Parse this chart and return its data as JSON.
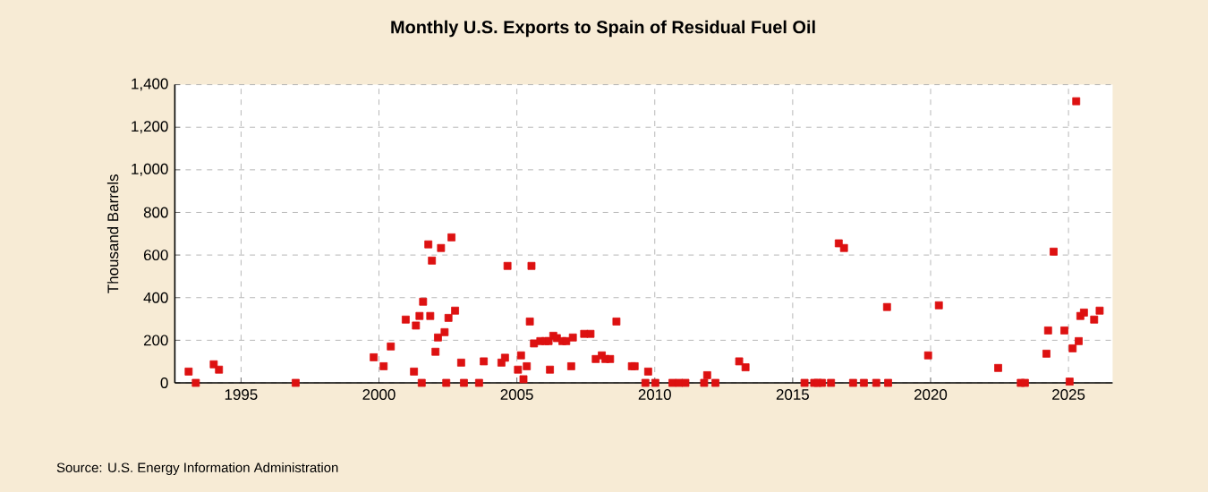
{
  "chart_data": {
    "type": "scatter",
    "title": "Monthly U.S. Exports to Spain of Residual Fuel Oil",
    "ylabel": "Thousand Barrels",
    "annotations": [
      "Source: U.S. Energy Information Administration"
    ],
    "x": [
      1993.1,
      1993.36,
      1994.01,
      1994.2,
      1996.98,
      1999.81,
      2000.17,
      2000.43,
      2000.97,
      2001.27,
      2001.34,
      2001.47,
      2001.55,
      2001.6,
      2001.79,
      2001.86,
      2001.92,
      2002.05,
      2002.14,
      2002.25,
      2002.38,
      2002.44,
      2002.52,
      2002.63,
      2002.76,
      2002.98,
      2003.08,
      2003.63,
      2003.8,
      2004.44,
      2004.57,
      2004.66,
      2005.04,
      2005.15,
      2005.24,
      2005.36,
      2005.47,
      2005.53,
      2005.62,
      2005.85,
      2006.03,
      2006.15,
      2006.2,
      2006.32,
      2006.45,
      2006.65,
      2006.79,
      2006.97,
      2007.03,
      2007.44,
      2007.67,
      2007.86,
      2008.08,
      2008.21,
      2008.38,
      2008.61,
      2009.17,
      2009.27,
      2009.66,
      2009.76,
      2010.02,
      2010.64,
      2010.88,
      2011.11,
      2011.79,
      2011.9,
      2012.2,
      2013.06,
      2013.29,
      2015.43,
      2015.78,
      2015.91,
      2016.06,
      2016.39,
      2016.67,
      2016.86,
      2017.19,
      2017.58,
      2018.03,
      2018.42,
      2018.46,
      2019.91,
      2020.3,
      2022.45,
      2023.27,
      2023.42,
      2024.2,
      2024.26,
      2024.46,
      2024.85,
      2025.04,
      2025.15,
      2025.28,
      2025.37,
      2025.43,
      2025.56,
      2025.93,
      2026.13
    ],
    "series": [
      {
        "color": "#dd1111",
        "values": [
          53,
          0,
          87,
          62,
          0,
          120,
          78,
          171,
          297,
          53,
          269,
          314,
          0,
          381,
          650,
          314,
          574,
          146,
          213,
          633,
          238,
          0,
          305,
          683,
          339,
          95,
          0,
          0,
          101,
          95,
          118,
          549,
          62,
          129,
          17,
          78,
          288,
          549,
          185,
          196,
          196,
          196,
          62,
          221,
          210,
          196,
          196,
          78,
          213,
          230,
          230,
          112,
          129,
          112,
          112,
          288,
          78,
          78,
          0,
          53,
          0,
          0,
          0,
          0,
          0,
          36,
          0,
          101,
          73,
          0,
          0,
          0,
          0,
          0,
          655,
          633,
          0,
          0,
          0,
          356,
          0,
          129,
          364,
          70,
          0,
          0,
          137,
          246,
          616,
          246,
          6,
          162,
          1322,
          196,
          314,
          330,
          297,
          339
        ]
      }
    ],
    "xlim": [
      1992.6,
      2026.6
    ],
    "ylim": [
      0,
      1400
    ],
    "xticks": [
      1995,
      2000,
      2005,
      2010,
      2015,
      2020,
      2025
    ],
    "yticks": [
      0,
      200,
      400,
      600,
      800,
      {
        "value": 1000,
        "label": "1,000"
      },
      {
        "value": 1200,
        "label": "1,200"
      },
      {
        "value": 1400,
        "label": "1,400"
      }
    ],
    "grid": true,
    "marker": "square"
  }
}
